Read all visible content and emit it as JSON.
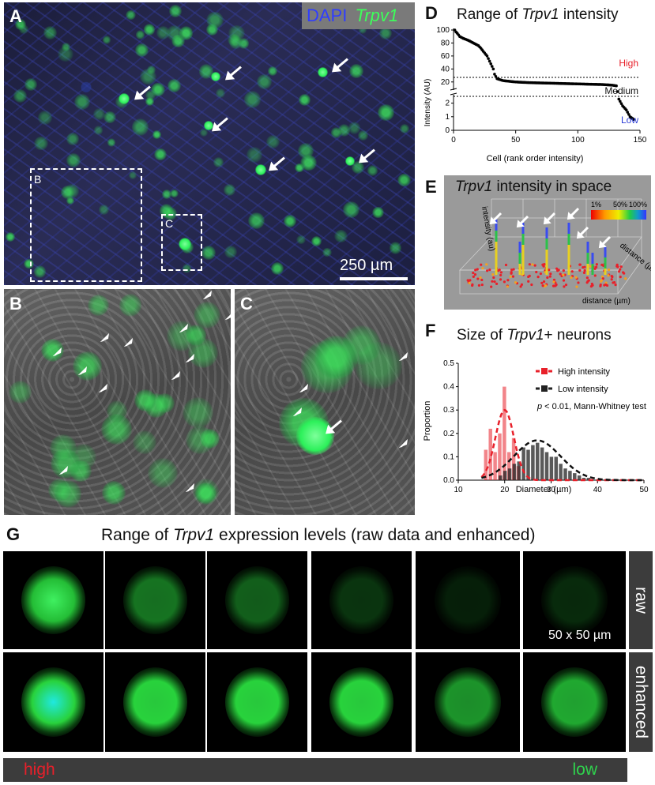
{
  "panels": {
    "A": {
      "letter": "A",
      "legend_dapi": "DAPI",
      "legend_trpv1": "Trpv1",
      "scale": "250 µm",
      "box_b": "B",
      "box_c": "C"
    },
    "B": {
      "letter": "B"
    },
    "C": {
      "letter": "C"
    },
    "D": {
      "letter": "D",
      "title_pre": "Range of ",
      "title_gene": "Trpv1",
      "title_post": " intensity",
      "ylabel": "Intensity (AU)",
      "xlabel": "Cell (rank order intensity)",
      "level_high": "High",
      "level_medium": "Medium",
      "level_low": "Low",
      "colors": {
        "high": "#e8202a",
        "low": "#2a3bd6"
      }
    },
    "E": {
      "letter": "E",
      "title_gene": "Trpv1",
      "title_post": " intensity in space",
      "axis_intensity": "intensity (au)",
      "axis_distance1": "distance (µm)",
      "axis_distance2": "distance (µm)",
      "colorbar_ticks": [
        "1%",
        "50%",
        "100%"
      ]
    },
    "F": {
      "letter": "F",
      "title_pre": "Size of ",
      "title_gene": "Trpv1",
      "title_post": "+ neurons",
      "ylabel": "Proportion",
      "xlabel": "Diameter (µm)",
      "legend_high": "High intensity",
      "legend_low": "Low intensity",
      "stat": "p < 0.01, Mann-Whitney test",
      "p_symbol": "p",
      "stat_rest": " < 0.01, Mann-Whitney test"
    },
    "G": {
      "letter": "G",
      "title_pre": "Range of ",
      "title_gene": "Trpv1",
      "title_post": " expression levels (raw data and enhanced)",
      "row_raw": "raw",
      "row_enhanced": "enhanced",
      "scale": "50 x 50 µm",
      "bar_high": "high",
      "bar_low": "low"
    }
  },
  "chart_data": [
    {
      "type": "scatter",
      "title": "Range of Trpv1 intensity",
      "xlabel": "Cell (rank order intensity)",
      "ylabel": "Intensity (AU)",
      "xlim": [
        0,
        150
      ],
      "x_ticks": [
        0,
        50,
        100,
        150
      ],
      "y_ticks_upper": [
        20,
        40,
        60,
        80,
        100
      ],
      "y_ticks_lower": [
        0,
        1,
        2
      ],
      "thresholds": [
        {
          "label": "High/Medium",
          "value": 27
        },
        {
          "label": "Medium/Low",
          "value": 2.5
        }
      ],
      "points": [
        [
          1,
          100
        ],
        [
          2,
          97
        ],
        [
          3,
          95
        ],
        [
          5,
          90
        ],
        [
          8,
          87
        ],
        [
          12,
          84
        ],
        [
          16,
          80
        ],
        [
          20,
          76
        ],
        [
          22,
          72
        ],
        [
          24,
          67
        ],
        [
          27,
          60
        ],
        [
          30,
          48
        ],
        [
          32,
          40
        ],
        [
          33,
          32
        ],
        [
          35,
          25
        ],
        [
          40,
          22
        ],
        [
          50,
          20
        ],
        [
          60,
          19
        ],
        [
          70,
          18.5
        ],
        [
          80,
          18
        ],
        [
          90,
          17.5
        ],
        [
          100,
          17
        ],
        [
          110,
          16.5
        ],
        [
          120,
          16
        ],
        [
          128,
          15
        ],
        [
          131,
          14
        ],
        [
          133,
          2.3
        ],
        [
          136,
          1.8
        ],
        [
          139,
          1.5
        ],
        [
          142,
          1.0
        ],
        [
          145,
          0.8
        ]
      ]
    },
    {
      "type": "bar",
      "title": "Size of Trpv1+ neurons",
      "xlabel": "Diameter (µm)",
      "ylabel": "Proportion",
      "xlim": [
        10,
        50
      ],
      "ylim": [
        0,
        0.5
      ],
      "x_ticks": [
        10,
        20,
        30,
        40,
        50
      ],
      "y_ticks": [
        0.0,
        0.1,
        0.2,
        0.3,
        0.4,
        0.5
      ],
      "series": [
        {
          "name": "High intensity",
          "color": "#e8202a",
          "x": [
            16,
            17,
            18,
            19,
            20,
            21,
            22,
            23
          ],
          "values": [
            0.13,
            0.22,
            0.12,
            0.2,
            0.4,
            0.12,
            0.18,
            0.06
          ]
        },
        {
          "name": "Low intensity",
          "color": "#222222",
          "x": [
            19,
            20,
            21,
            22,
            23,
            24,
            25,
            26,
            27,
            28,
            29,
            30,
            31,
            32,
            33,
            34,
            35,
            36,
            37,
            38
          ],
          "values": [
            0.02,
            0.04,
            0.05,
            0.07,
            0.08,
            0.14,
            0.13,
            0.15,
            0.16,
            0.14,
            0.12,
            0.1,
            0.1,
            0.07,
            0.05,
            0.04,
            0.03,
            0.02,
            0.01,
            0.01
          ]
        }
      ],
      "fits": [
        {
          "name": "High intensity",
          "mean": 20,
          "sd": 2,
          "peak": 0.3
        },
        {
          "name": "Low intensity",
          "mean": 27,
          "sd": 5,
          "peak": 0.17
        }
      ]
    }
  ]
}
